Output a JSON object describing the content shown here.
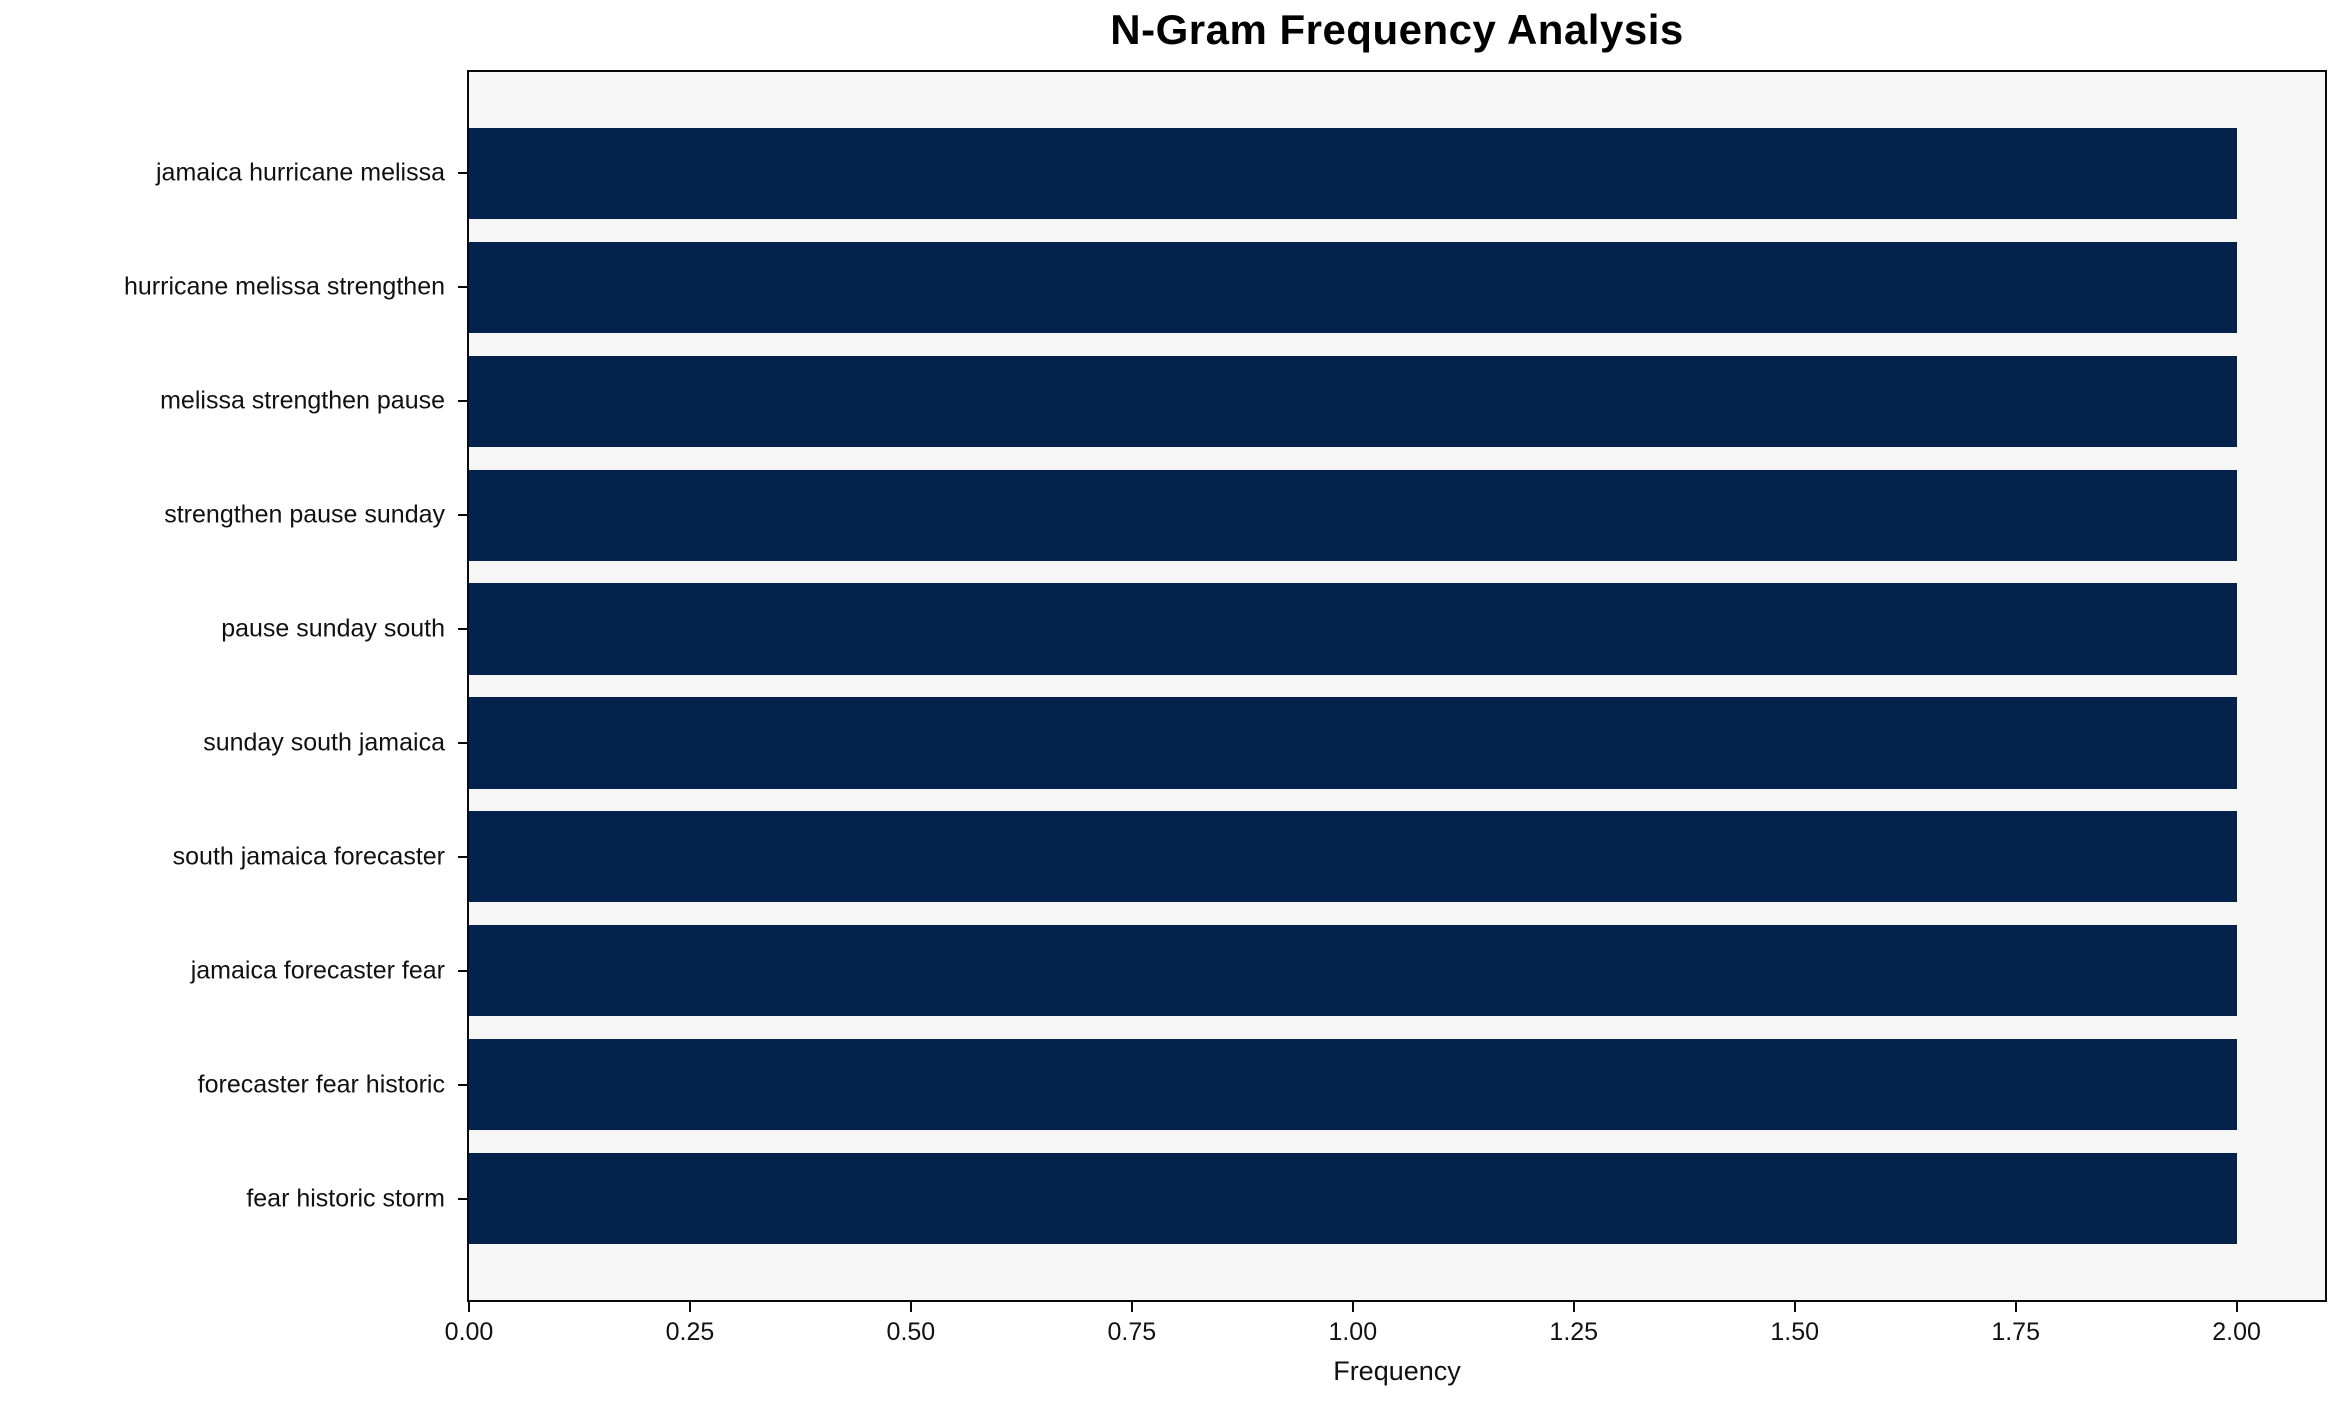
{
  "title": "N-Gram Frequency Analysis",
  "chart_data": {
    "type": "bar",
    "orientation": "horizontal",
    "title": "N-Gram Frequency Analysis",
    "xlabel": "Frequency",
    "ylabel": "",
    "categories": [
      "jamaica hurricane melissa",
      "hurricane melissa strengthen",
      "melissa strengthen pause",
      "strengthen pause sunday",
      "pause sunday south",
      "sunday south jamaica",
      "south jamaica forecaster",
      "jamaica forecaster fear",
      "forecaster fear historic",
      "fear historic storm"
    ],
    "values": [
      2,
      2,
      2,
      2,
      2,
      2,
      2,
      2,
      2,
      2
    ],
    "xlim": [
      0,
      2.1
    ],
    "xticks": [
      0.0,
      0.25,
      0.5,
      0.75,
      1.0,
      1.25,
      1.5,
      1.75,
      2.0
    ],
    "xtick_labels": [
      "0.00",
      "0.25",
      "0.50",
      "0.75",
      "1.00",
      "1.25",
      "1.50",
      "1.75",
      "2.00"
    ],
    "grid": false,
    "legend": null,
    "colors": {
      "bar": "#05224d",
      "plot_background": "#f6f6f7",
      "figure_background": "#ffffff",
      "spine": "#0a0a0a",
      "text": "#111111"
    }
  }
}
